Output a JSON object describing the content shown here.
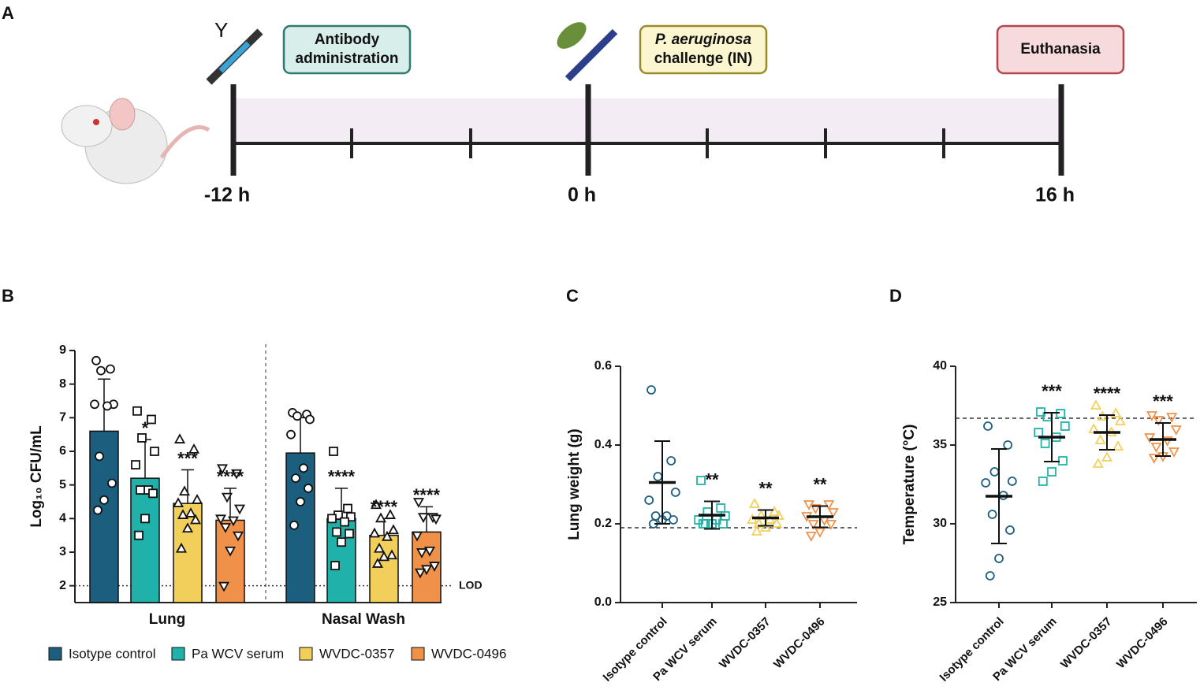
{
  "timeline": {
    "panel": "A",
    "events": [
      {
        "lines": [
          "Antibody",
          "administration"
        ],
        "time": "-12 h",
        "box": "#d7eeea",
        "border": "#2f7a6e"
      },
      {
        "lines": [
          "P. aeruginosa",
          "challenge (IN)"
        ],
        "time": "0 h",
        "box": "#fbf6cf",
        "border": "#9a8a2a"
      },
      {
        "lines": [
          "Euthanasia"
        ],
        "time": "16  h",
        "box": "#f7dadc",
        "border": "#b5454f"
      }
    ]
  },
  "chart_data": [
    {
      "type": "bar",
      "panel": "B",
      "ylabel": "Log₁₀ CFU/mL",
      "categories": [
        "Lung",
        "Nasal Wash"
      ],
      "ylim": [
        1.5,
        9
      ],
      "yticks": [
        2,
        3,
        4,
        5,
        6,
        7,
        8,
        9
      ],
      "reference_line": {
        "value": 2,
        "label": "LOD"
      },
      "series": [
        {
          "name": "Isotype control",
          "color": "#1b5e7e",
          "marker": "circle",
          "values": [
            6.6,
            5.95
          ],
          "errors": [
            1.55,
            1.05
          ],
          "significance": [
            null,
            null
          ],
          "points": [
            [
              8.7,
              8.45,
              8.4,
              7.4,
              7.4,
              7.35,
              5.85,
              5.05,
              4.55,
              4.25
            ],
            [
              7.15,
              7.1,
              7.05,
              6.95,
              6.5,
              5.5,
              5.2,
              4.9,
              4.5,
              3.8
            ]
          ]
        },
        {
          "name": "Pa WCV serum",
          "color": "#20b2aa",
          "marker": "square",
          "values": [
            5.2,
            4.0
          ],
          "errors": [
            1.15,
            0.9
          ],
          "significance": [
            "*",
            "****"
          ],
          "points": [
            [
              7.2,
              6.95,
              6.4,
              6.0,
              5.6,
              4.85,
              4.85,
              4.75,
              4.0,
              3.5
            ],
            [
              6.0,
              4.3,
              4.1,
              4.05,
              4.0,
              3.9,
              3.6,
              3.55,
              3.3,
              2.6
            ]
          ]
        },
        {
          "name": "WVDC-0357",
          "color": "#f2cf5b",
          "marker": "triangle-up",
          "values": [
            4.45,
            3.5
          ],
          "errors": [
            1.0,
            0.5
          ],
          "significance": [
            "***",
            "****"
          ],
          "points": [
            [
              6.35,
              6.05,
              4.8,
              4.55,
              4.45,
              4.15,
              4.1,
              3.95,
              3.7,
              3.1
            ],
            [
              4.4,
              4.1,
              4.0,
              3.65,
              3.55,
              3.45,
              3.1,
              2.9,
              2.85,
              2.65
            ]
          ]
        },
        {
          "name": "WVDC-0496",
          "color": "#f0914a",
          "marker": "triangle-down",
          "values": [
            3.95,
            3.6
          ],
          "errors": [
            0.95,
            0.75
          ],
          "significance": [
            "****",
            "****"
          ],
          "points": [
            [
              5.5,
              5.35,
              4.65,
              4.3,
              4.0,
              3.95,
              3.75,
              3.5,
              3.05,
              2.0
            ],
            [
              4.5,
              4.05,
              4.05,
              4.0,
              3.5,
              3.05,
              3.0,
              2.6,
              2.5,
              2.4
            ]
          ]
        }
      ]
    },
    {
      "type": "dot",
      "panel": "C",
      "ylabel": "Lung weight (g)",
      "categories": [
        "Isotype control",
        "Pa WCV serum",
        "WVDC-0357",
        "WVDC-0496"
      ],
      "colors": [
        "#1b5e7e",
        "#20b2aa",
        "#f2cf5b",
        "#f0914a"
      ],
      "markers": [
        "circle",
        "square",
        "triangle-up",
        "triangle-down"
      ],
      "ylim": [
        0,
        0.6
      ],
      "yticks": [
        {
          "value": 0,
          "label": "0.0"
        },
        0.2,
        0.4,
        0.6
      ],
      "reference_line": {
        "value": 0.19
      },
      "values": [
        0.305,
        0.222,
        0.215,
        0.218
      ],
      "errors": [
        0.105,
        0.035,
        0.02,
        0.027
      ],
      "significance": [
        null,
        "**",
        "**",
        "**"
      ],
      "points": [
        [
          0.54,
          0.36,
          0.32,
          0.28,
          0.26,
          0.22,
          0.22,
          0.21,
          0.21,
          0.2
        ],
        [
          0.31,
          0.24,
          0.23,
          0.22,
          0.21,
          0.21,
          0.2,
          0.2,
          0.2,
          0.2
        ],
        [
          0.25,
          0.23,
          0.22,
          0.22,
          0.21,
          0.21,
          0.2,
          0.2,
          0.19,
          0.18
        ],
        [
          0.25,
          0.25,
          0.24,
          0.23,
          0.22,
          0.21,
          0.2,
          0.2,
          0.18,
          0.17
        ]
      ]
    },
    {
      "type": "dot",
      "panel": "D",
      "ylabel": "Temperature (°C)",
      "categories": [
        "Isotype control",
        "Pa WCV serum",
        "WVDC-0357",
        "WVDC-0496"
      ],
      "colors": [
        "#1b5e7e",
        "#20b2aa",
        "#f2cf5b",
        "#f0914a"
      ],
      "markers": [
        "circle",
        "square",
        "triangle-up",
        "triangle-down"
      ],
      "ylim": [
        25,
        40
      ],
      "yticks": [
        25,
        30,
        35,
        40
      ],
      "reference_line": {
        "value": 36.7
      },
      "values": [
        31.75,
        35.5,
        35.8,
        35.35
      ],
      "errors": [
        3.0,
        1.55,
        1.1,
        1.05
      ],
      "significance": [
        null,
        "***",
        "****",
        "***"
      ],
      "points": [
        [
          36.2,
          35.0,
          33.3,
          32.7,
          32.6,
          31.8,
          30.6,
          29.6,
          27.8,
          26.7
        ],
        [
          37.1,
          37.0,
          36.8,
          36.2,
          35.8,
          35.5,
          35.1,
          34.0,
          33.3,
          32.7
        ],
        [
          37.5,
          37.0,
          36.8,
          36.5,
          36.0,
          35.8,
          35.3,
          34.9,
          34.2,
          33.8
        ],
        [
          36.9,
          36.8,
          36.6,
          36.0,
          35.5,
          35.3,
          34.9,
          34.6,
          34.3,
          34.2
        ]
      ]
    }
  ]
}
